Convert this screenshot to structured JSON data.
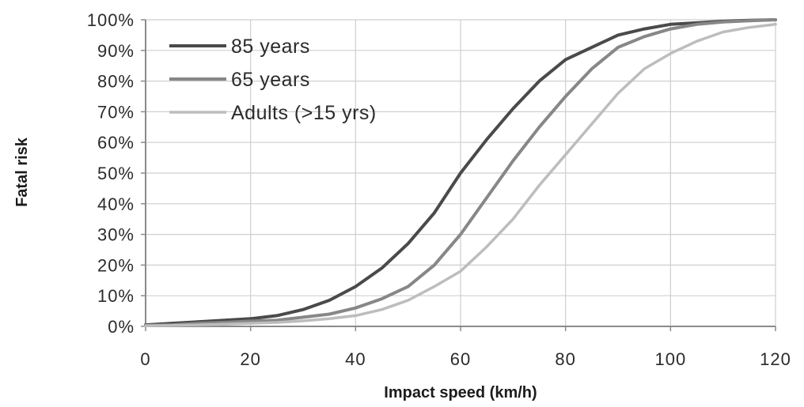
{
  "chart_data": {
    "type": "line",
    "xlabel": "Impact speed (km/h)",
    "ylabel": "Fatal risk",
    "xlim": [
      0,
      120
    ],
    "ylim": [
      0,
      100
    ],
    "x_ticks": [
      0,
      20,
      40,
      60,
      80,
      100,
      120
    ],
    "x_tick_labels": [
      "0",
      "20",
      "40",
      "60",
      "80",
      "100",
      "120"
    ],
    "y_ticks": [
      0,
      10,
      20,
      30,
      40,
      50,
      60,
      70,
      80,
      90,
      100
    ],
    "y_tick_labels": [
      "0%",
      "10%",
      "20%",
      "30%",
      "40%",
      "50%",
      "60%",
      "70%",
      "80%",
      "90%",
      "100%"
    ],
    "grid": "horizontal and vertical",
    "legend_position": "top-left",
    "x": [
      0,
      5,
      10,
      15,
      20,
      25,
      30,
      35,
      40,
      45,
      50,
      55,
      60,
      65,
      70,
      75,
      80,
      85,
      90,
      95,
      100,
      105,
      110,
      115,
      120
    ],
    "series": [
      {
        "name": "85 years",
        "color": "#4a4a4a",
        "values": [
          0.5,
          1,
          1.5,
          2,
          2.5,
          3.5,
          5.5,
          8.5,
          13,
          19,
          27,
          37,
          50,
          61,
          71,
          80,
          87,
          91,
          95,
          97,
          98.5,
          99,
          99.5,
          99.8,
          100
        ]
      },
      {
        "name": "65 years",
        "color": "#878787",
        "values": [
          0.3,
          0.5,
          1,
          1.3,
          1.7,
          2,
          3,
          4,
          6,
          9,
          13,
          20,
          30,
          42,
          54,
          65,
          75,
          84,
          91,
          94.5,
          97,
          98.5,
          99.3,
          99.7,
          100
        ]
      },
      {
        "name": "Adults (>15 yrs)",
        "color": "#bdbdbd",
        "values": [
          0.2,
          0.3,
          0.5,
          0.7,
          1,
          1.3,
          1.8,
          2.5,
          3.5,
          5.5,
          8.5,
          13,
          18,
          26,
          35,
          46,
          56,
          66,
          76,
          84,
          89,
          93,
          96,
          97.5,
          98.5
        ]
      }
    ]
  }
}
